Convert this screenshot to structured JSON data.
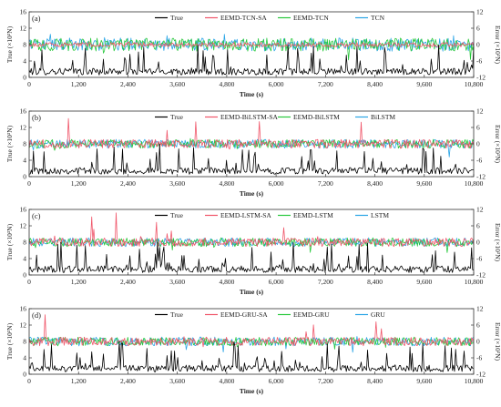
{
  "figure": {
    "x_ticks": [
      "0",
      "1,200",
      "2,400",
      "3,600",
      "4,800",
      "6,000",
      "7,200",
      "8,400",
      "9,600",
      "10,800"
    ],
    "left_ticks": [
      "0",
      "4",
      "8",
      "12",
      "16"
    ],
    "right_ticks": [
      "-12",
      "-6",
      "0",
      "6",
      "12"
    ],
    "xlabel": "Time (s)",
    "ylabel_left": "True (×10³N)",
    "ylabel_right": "Error (×10³N)"
  },
  "chart_data": [
    {
      "type": "line",
      "panel": "(a)",
      "xlabel": "Time (s)",
      "ylabel": "True (×10³N)",
      "ylabel_right": "Error (×10³N)",
      "xlim": [
        0,
        10800
      ],
      "ylim": [
        0,
        16
      ],
      "ylim_right": [
        -12,
        12
      ],
      "legend_position": "top",
      "series": [
        {
          "name": "True",
          "color": "#000000",
          "axis": "left",
          "approx_range": [
            0,
            8
          ]
        },
        {
          "name": "EEMD-TCN-SA",
          "color": "#f0566a",
          "axis": "right",
          "approx_range": [
            -1,
            1
          ]
        },
        {
          "name": "EEMD-TCN",
          "color": "#28c83c",
          "axis": "right",
          "approx_range": [
            -6,
            3
          ]
        },
        {
          "name": "TCN",
          "color": "#2aa5e6",
          "axis": "right",
          "approx_range": [
            -3,
            6
          ]
        }
      ]
    },
    {
      "type": "line",
      "panel": "(b)",
      "xlabel": "Time (s)",
      "ylabel": "True (×10³N)",
      "ylabel_right": "Error (×10³N)",
      "xlim": [
        0,
        10800
      ],
      "ylim": [
        0,
        16
      ],
      "ylim_right": [
        -12,
        12
      ],
      "legend_position": "top",
      "series": [
        {
          "name": "True",
          "color": "#000000",
          "axis": "left",
          "approx_range": [
            0,
            8
          ]
        },
        {
          "name": "EEMD-BiLSTM-SA",
          "color": "#f0566a",
          "axis": "right",
          "approx_range": [
            -2,
            11
          ]
        },
        {
          "name": "EEMD-BiLSTM",
          "color": "#28c83c",
          "axis": "right",
          "approx_range": [
            -3,
            2
          ]
        },
        {
          "name": "BiLSTM",
          "color": "#2aa5e6",
          "axis": "right",
          "approx_range": [
            -5,
            2
          ]
        }
      ]
    },
    {
      "type": "line",
      "panel": "(c)",
      "xlabel": "Time (s)",
      "ylabel": "True (×10³N)",
      "ylabel_right": "Error (×10³N)",
      "xlim": [
        0,
        10800
      ],
      "ylim": [
        0,
        16
      ],
      "ylim_right": [
        -12,
        12
      ],
      "legend_position": "top",
      "series": [
        {
          "name": "True",
          "color": "#000000",
          "axis": "left",
          "approx_range": [
            0,
            8
          ]
        },
        {
          "name": "EEMD-LSTM-SA",
          "color": "#f0566a",
          "axis": "right",
          "approx_range": [
            -2,
            11
          ]
        },
        {
          "name": "EEMD-LSTM",
          "color": "#28c83c",
          "axis": "right",
          "approx_range": [
            -4,
            2
          ]
        },
        {
          "name": "LSTM",
          "color": "#2aa5e6",
          "axis": "right",
          "approx_range": [
            -2,
            2
          ]
        }
      ]
    },
    {
      "type": "line",
      "panel": "(d)",
      "xlabel": "Time (s)",
      "ylabel": "True (×10³N)",
      "ylabel_right": "Error (×10³N)",
      "xlim": [
        0,
        10800
      ],
      "ylim": [
        0,
        16
      ],
      "ylim_right": [
        -12,
        12
      ],
      "legend_position": "top",
      "series": [
        {
          "name": "True",
          "color": "#000000",
          "axis": "left",
          "approx_range": [
            0,
            8
          ]
        },
        {
          "name": "EEMD-GRU-SA",
          "color": "#f0566a",
          "axis": "right",
          "approx_range": [
            -2,
            11
          ]
        },
        {
          "name": "EEMD-GRU",
          "color": "#28c83c",
          "axis": "right",
          "approx_range": [
            -3,
            2
          ]
        },
        {
          "name": "GRU",
          "color": "#2aa5e6",
          "axis": "right",
          "approx_range": [
            -4,
            2
          ]
        }
      ]
    }
  ]
}
